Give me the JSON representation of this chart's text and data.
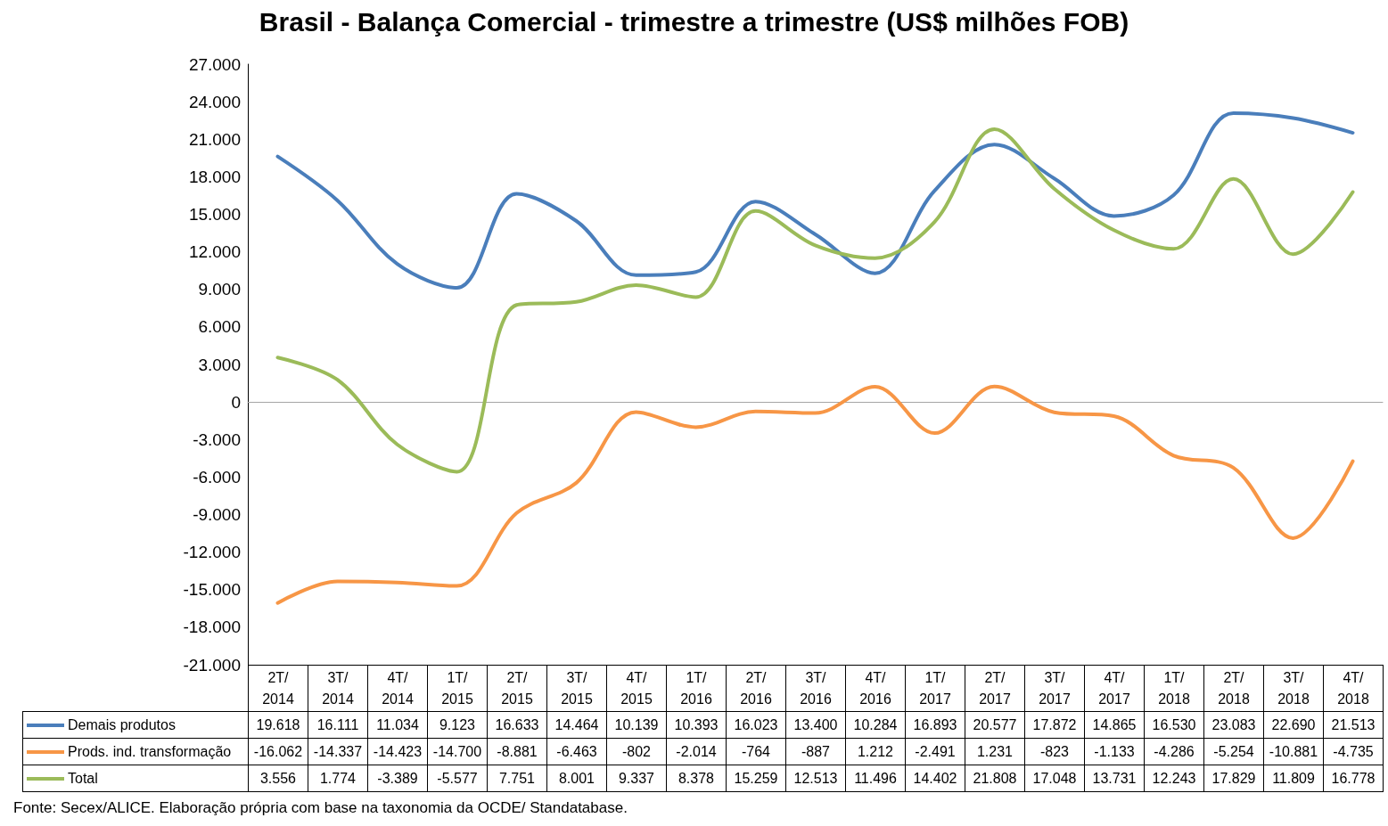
{
  "chart_data": {
    "type": "line",
    "title": "Brasil - Balança Comercial - trimestre a trimestre (US$ milhões FOB)",
    "categories": [
      "2T/2014",
      "3T/2014",
      "4T/2014",
      "1T/2015",
      "2T/2015",
      "3T/2015",
      "4T/2015",
      "1T/2016",
      "2T/2016",
      "3T/2016",
      "4T/2016",
      "1T/2017",
      "2T/2017",
      "3T/2017",
      "4T/2017",
      "1T/2018",
      "2T/2018",
      "3T/2018",
      "4T/2018"
    ],
    "series": [
      {
        "name": "Demais produtos",
        "color": "#4a7ebb",
        "values": [
          19618,
          16111,
          11034,
          9123,
          16633,
          14464,
          10139,
          10393,
          16023,
          13400,
          10284,
          16893,
          20577,
          17872,
          14865,
          16530,
          23083,
          22690,
          21513
        ],
        "value_labels": [
          "19.618",
          "16.111",
          "11.034",
          "9.123",
          "16.633",
          "14.464",
          "10.139",
          "10.393",
          "16.023",
          "13.400",
          "10.284",
          "16.893",
          "20.577",
          "17.872",
          "14.865",
          "16.530",
          "23.083",
          "22.690",
          "21.513"
        ]
      },
      {
        "name": "Prods. ind. transformação",
        "color": "#f79646",
        "values": [
          -16062,
          -14337,
          -14423,
          -14700,
          -8881,
          -6463,
          -802,
          -2014,
          -764,
          -887,
          1212,
          -2491,
          1231,
          -823,
          -1133,
          -4286,
          -5254,
          -10881,
          -4735
        ],
        "value_labels": [
          "-16.062",
          "-14.337",
          "-14.423",
          "-14.700",
          "-8.881",
          "-6.463",
          "-802",
          "-2.014",
          "-764",
          "-887",
          "1.212",
          "-2.491",
          "1.231",
          "-823",
          "-1.133",
          "-4.286",
          "-5.254",
          "-10.881",
          "-4.735"
        ]
      },
      {
        "name": "Total",
        "color": "#9bbb59",
        "values": [
          3556,
          1774,
          -3389,
          -5577,
          7751,
          8001,
          9337,
          8378,
          15259,
          12513,
          11496,
          14402,
          21808,
          17048,
          13731,
          12243,
          17829,
          11809,
          16778
        ],
        "value_labels": [
          "3.556",
          "1.774",
          "-3.389",
          "-5.577",
          "7.751",
          "8.001",
          "9.337",
          "8.378",
          "15.259",
          "12.513",
          "11.496",
          "14.402",
          "21.808",
          "17.048",
          "13.731",
          "12.243",
          "17.829",
          "11.809",
          "16.778"
        ]
      }
    ],
    "ylim": [
      -21000,
      27000
    ],
    "yticks": [
      {
        "value": -21000,
        "label": "-21.000"
      },
      {
        "value": -18000,
        "label": "-18.000"
      },
      {
        "value": -15000,
        "label": "-15.000"
      },
      {
        "value": -12000,
        "label": "-12.000"
      },
      {
        "value": -9000,
        "label": "-9.000"
      },
      {
        "value": -6000,
        "label": "-6.000"
      },
      {
        "value": -3000,
        "label": "-3.000"
      },
      0,
      {
        "value": 3000,
        "label": "3.000"
      },
      {
        "value": 6000,
        "label": "6.000"
      },
      {
        "value": 9000,
        "label": "9.000"
      },
      {
        "value": 12000,
        "label": "12.000"
      },
      {
        "value": 15000,
        "label": "15.000"
      },
      {
        "value": 18000,
        "label": "18.000"
      },
      {
        "value": 21000,
        "label": "21.000"
      },
      {
        "value": 24000,
        "label": "24.000"
      },
      {
        "value": 27000,
        "label": "27.000"
      }
    ],
    "marker": "none",
    "legend": "bottom",
    "annotations": [
      "Fonte: Secex/ALICE. Elaboração própria com base na taxonomia da OCDE/ Standatabase."
    ]
  }
}
